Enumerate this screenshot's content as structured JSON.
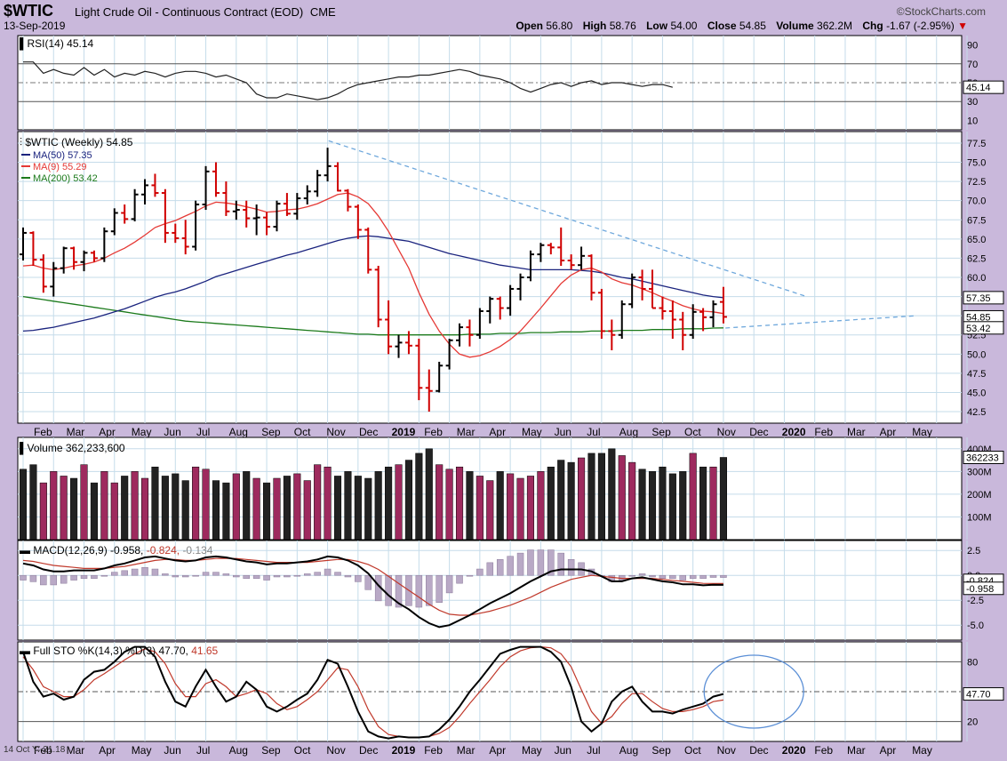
{
  "header": {
    "symbol": "$WTIC",
    "description": "Light Crude Oil - Continuous Contract (EOD)",
    "exchange": "CME",
    "date": "13-Sep-2019",
    "brand": "©StockCharts.com",
    "open_label": "Open",
    "open": "56.80",
    "high_label": "High",
    "high": "58.76",
    "low_label": "Low",
    "low": "54.00",
    "close_label": "Close",
    "close": "54.85",
    "volume_label": "Volume",
    "volume": "362.2M",
    "chg_label": "Chg",
    "chg": "-1.67 (-2.95%)"
  },
  "footer": "14 Oct Y:-21.18",
  "chart_data": [
    {
      "type": "line",
      "panel": "rsi",
      "title": "RSI(14) 45.14",
      "last_value_label": "45.14",
      "ylim": [
        0,
        100
      ],
      "ticks": [
        "90",
        "70",
        "50",
        "30",
        "10"
      ],
      "tick_values": [
        90,
        70,
        50,
        30,
        10
      ],
      "reference_lines": [
        70,
        50,
        30
      ],
      "values": [
        72,
        72,
        60,
        64,
        60,
        58,
        66,
        58,
        64,
        56,
        60,
        58,
        62,
        60,
        56,
        60,
        62,
        62,
        60,
        56,
        58,
        54,
        50,
        38,
        34,
        34,
        38,
        36,
        34,
        32,
        34,
        38,
        44,
        48,
        50,
        52,
        54,
        56,
        56,
        58,
        58,
        60,
        62,
        64,
        62,
        58,
        56,
        54,
        50,
        44,
        40,
        44,
        48,
        50,
        46,
        50,
        52,
        48,
        50,
        50,
        48,
        46,
        48,
        48,
        45.14
      ]
    },
    {
      "type": "bar",
      "panel": "price",
      "title": "$WTIC (Weekly) 54.85",
      "ylim": [
        41,
        79
      ],
      "ticks": [
        "77.5",
        "75.0",
        "72.5",
        "70.0",
        "67.5",
        "65.0",
        "62.5",
        "60.0",
        "57.5",
        "55.0",
        "52.5",
        "50.0",
        "47.5",
        "45.0",
        "42.5"
      ],
      "tick_values": [
        77.5,
        75,
        72.5,
        70,
        67.5,
        65,
        62.5,
        60,
        57.5,
        55,
        52.5,
        50,
        47.5,
        45,
        42.5
      ],
      "x_labels": [
        "Feb",
        "Mar",
        "Apr",
        "May",
        "Jun",
        "Jul",
        "Aug",
        "Sep",
        "Oct",
        "Nov",
        "Dec",
        "2019",
        "Feb",
        "Mar",
        "Apr",
        "May",
        "Jun",
        "Jul",
        "Aug",
        "Sep",
        "Oct",
        "Nov",
        "Dec",
        "2020",
        "Feb",
        "Mar",
        "Apr",
        "May"
      ],
      "legend": [
        {
          "name": "MA(50) 57.35",
          "color": "#1a237e"
        },
        {
          "name": "MA(9) 55.29",
          "color": "#e53935"
        },
        {
          "name": "MA(200) 53.42",
          "color": "#1b7a1b"
        }
      ],
      "axis_badges": [
        "57.35",
        "54.85",
        "53.42"
      ],
      "ohlc": [
        [
          63,
          66.5,
          62.2,
          65.8
        ],
        [
          65.8,
          66,
          61.5,
          62.3
        ],
        [
          62.3,
          63,
          58,
          58.8
        ],
        [
          58.8,
          62,
          57.5,
          61.2
        ],
        [
          61.2,
          64,
          60.5,
          63.8
        ],
        [
          63.8,
          64,
          61,
          62
        ],
        [
          62,
          63.5,
          60.8,
          63.2
        ],
        [
          63.2,
          63.5,
          62,
          62.5
        ],
        [
          62.5,
          66.5,
          62,
          66
        ],
        [
          66,
          69,
          65.5,
          68.4
        ],
        [
          68.4,
          69.5,
          67,
          67.6
        ],
        [
          67.6,
          71.5,
          67.3,
          70.8
        ],
        [
          70.8,
          72.8,
          69.5,
          72
        ],
        [
          72,
          73.5,
          70.5,
          71
        ],
        [
          71,
          71.5,
          64.5,
          65.8
        ],
        [
          65.8,
          67,
          64.5,
          65.1
        ],
        [
          65.1,
          67.5,
          63,
          64
        ],
        [
          64,
          70,
          63.5,
          69.5
        ],
        [
          69.5,
          74.5,
          68.8,
          73.8
        ],
        [
          73.8,
          75,
          70.5,
          71
        ],
        [
          71,
          72.5,
          68,
          68.6
        ],
        [
          68.6,
          70,
          67.5,
          68.8
        ],
        [
          68.8,
          70,
          66.5,
          67.7
        ],
        [
          67.7,
          69.5,
          65.5,
          67.8
        ],
        [
          67.8,
          68.5,
          65.5,
          66.6
        ],
        [
          66.6,
          70,
          66,
          69.6
        ],
        [
          69.6,
          71,
          68,
          68.3
        ],
        [
          68.3,
          71,
          67.5,
          70.3
        ],
        [
          70.3,
          72,
          69.5,
          71.2
        ],
        [
          71.2,
          74,
          70.5,
          73.3
        ],
        [
          73.3,
          76.9,
          72.5,
          74.5
        ],
        [
          74.5,
          75,
          71.2,
          71.3
        ],
        [
          71.3,
          71.5,
          68.6,
          69.2
        ],
        [
          69.2,
          69.5,
          65,
          66.2
        ],
        [
          66.2,
          66.5,
          60.5,
          61
        ],
        [
          61,
          61.5,
          53.5,
          54.5
        ],
        [
          54.5,
          57,
          50,
          51
        ],
        [
          51,
          52.5,
          49.5,
          51.5
        ],
        [
          51.5,
          53,
          50,
          51.1
        ],
        [
          51.1,
          52,
          44,
          45.6
        ],
        [
          45.6,
          48,
          42.5,
          45.2
        ],
        [
          45.2,
          49,
          45,
          48.5
        ],
        [
          48.5,
          52,
          48,
          51.8
        ],
        [
          51.8,
          54,
          51,
          53.5
        ],
        [
          53.5,
          54.5,
          51,
          52.5
        ],
        [
          52.5,
          56,
          52,
          55.6
        ],
        [
          55.6,
          57.5,
          54,
          57.2
        ],
        [
          57.2,
          57.5,
          54.5,
          56
        ],
        [
          56,
          59,
          55,
          58.5
        ],
        [
          58.5,
          60.5,
          57,
          60
        ],
        [
          60,
          63.5,
          59.5,
          63
        ],
        [
          63,
          64.5,
          62,
          64.2
        ],
        [
          64.2,
          64.5,
          63,
          63.9
        ],
        [
          63.9,
          66.5,
          61.5,
          62.2
        ],
        [
          62.2,
          63,
          61,
          61.6
        ],
        [
          61.6,
          64,
          61,
          62.8
        ],
        [
          62.8,
          63,
          57,
          58
        ],
        [
          58,
          58.5,
          52,
          53
        ],
        [
          53,
          54.5,
          50.5,
          52.5
        ],
        [
          52.5,
          57,
          52,
          56.5
        ],
        [
          56.5,
          60.5,
          56,
          60
        ],
        [
          60,
          61,
          57,
          58.5
        ],
        [
          58.5,
          61,
          56,
          56
        ],
        [
          56,
          57.5,
          54.5,
          55.6
        ],
        [
          55.6,
          57,
          52,
          54.5
        ],
        [
          54.5,
          55.5,
          50.5,
          52.5
        ],
        [
          52.5,
          56.5,
          52,
          55.5
        ],
        [
          55.5,
          56,
          53,
          54.8
        ],
        [
          54.8,
          57,
          53.5,
          56.5
        ],
        [
          56.8,
          58.76,
          54,
          54.85
        ]
      ],
      "ma9": [
        61.5,
        61.6,
        61.2,
        61,
        61.2,
        61.5,
        61.7,
        62,
        62.5,
        63.2,
        63.8,
        64.6,
        65.5,
        66.5,
        67,
        67.4,
        68,
        68.6,
        69.3,
        69.8,
        69.7,
        69.5,
        69.2,
        68.9,
        68.5,
        68.6,
        68.8,
        68.9,
        69.2,
        69.6,
        70.2,
        70.8,
        71,
        70.5,
        69.6,
        68,
        66,
        63.6,
        61.2,
        58,
        55.2,
        53,
        51.3,
        50,
        49.6,
        49.8,
        50.3,
        51,
        51.9,
        53,
        54.5,
        56,
        57.6,
        59.2,
        60.3,
        61,
        61.2,
        60.7,
        59.8,
        59.3,
        59,
        58.5,
        58,
        57.4,
        56.9,
        56.3,
        55.9,
        55.6,
        55.5,
        55.29
      ],
      "ma50": [
        53,
        53.1,
        53.3,
        53.5,
        53.8,
        54.1,
        54.4,
        54.7,
        55.1,
        55.5,
        55.9,
        56.4,
        56.9,
        57.4,
        57.8,
        58.1,
        58.5,
        59,
        59.5,
        60.1,
        60.5,
        60.9,
        61.3,
        61.7,
        62.1,
        62.5,
        62.9,
        63.2,
        63.6,
        64,
        64.4,
        64.8,
        65.1,
        65.3,
        65.4,
        65.3,
        65.1,
        64.9,
        64.7,
        64.3,
        63.9,
        63.5,
        63.1,
        62.8,
        62.5,
        62.2,
        61.9,
        61.6,
        61.4,
        61.2,
        61,
        61,
        61,
        61,
        61,
        60.9,
        60.8,
        60.6,
        60.3,
        60,
        59.8,
        59.5,
        59.2,
        58.9,
        58.6,
        58.3,
        58,
        57.7,
        57.5,
        57.35
      ],
      "ma200": [
        57.5,
        57.3,
        57.1,
        56.9,
        56.7,
        56.5,
        56.3,
        56.1,
        55.9,
        55.7,
        55.5,
        55.3,
        55.1,
        54.9,
        54.7,
        54.5,
        54.3,
        54.2,
        54.1,
        54,
        53.9,
        53.8,
        53.7,
        53.6,
        53.5,
        53.4,
        53.3,
        53.2,
        53.1,
        53,
        52.9,
        52.8,
        52.7,
        52.6,
        52.6,
        52.5,
        52.5,
        52.5,
        52.5,
        52.5,
        52.5,
        52.5,
        52.5,
        52.5,
        52.6,
        52.6,
        52.6,
        52.7,
        52.7,
        52.7,
        52.8,
        52.8,
        52.8,
        52.9,
        52.9,
        52.9,
        53,
        53,
        53,
        53.1,
        53.1,
        53.1,
        53.2,
        53.2,
        53.2,
        53.3,
        53.3,
        53.3,
        53.4,
        53.42
      ],
      "trendline_upper": [
        [
          30.1,
          77.8
        ],
        [
          77.2,
          57.5
        ]
      ],
      "trendline_lower": [
        [
          69.2,
          53.4
        ],
        [
          88,
          55
        ]
      ]
    },
    {
      "type": "bar",
      "panel": "volume",
      "title": "Volume 362,233,600",
      "last_value_label": "362233",
      "ylim": [
        0,
        450
      ],
      "ticks": [
        "400M",
        "300M",
        "200M",
        "100M"
      ],
      "tick_values": [
        400,
        300,
        200,
        100
      ],
      "values": [
        310,
        330,
        250,
        300,
        280,
        270,
        330,
        250,
        300,
        250,
        280,
        300,
        270,
        320,
        280,
        290,
        260,
        320,
        310,
        260,
        250,
        290,
        300,
        270,
        250,
        270,
        280,
        290,
        260,
        330,
        320,
        280,
        300,
        280,
        270,
        300,
        320,
        330,
        350,
        380,
        400,
        330,
        310,
        320,
        300,
        280,
        260,
        300,
        290,
        270,
        280,
        300,
        320,
        350,
        340,
        360,
        380,
        380,
        400,
        370,
        340,
        310,
        300,
        320,
        290,
        300,
        380,
        320,
        320,
        362
      ],
      "up": [
        false,
        false,
        true,
        true,
        true,
        false,
        true,
        false,
        true,
        true,
        false,
        true,
        true,
        false,
        false,
        false,
        false,
        true,
        true,
        false,
        false,
        true,
        false,
        true,
        false,
        true,
        false,
        true,
        true,
        true,
        true,
        false,
        false,
        false,
        false,
        false,
        false,
        true,
        false,
        false,
        false,
        true,
        true,
        true,
        false,
        true,
        true,
        false,
        true,
        true,
        true,
        true,
        false,
        false,
        false,
        true,
        false,
        false,
        false,
        true,
        true,
        false,
        false,
        false,
        false,
        false,
        true,
        false,
        true,
        false
      ]
    },
    {
      "type": "line",
      "panel": "macd",
      "title": "MACD(12,26,9)",
      "values_label": [
        "-0.958",
        "-0.824",
        "-0.134"
      ],
      "axis_badges": [
        "-0.824",
        "-0.958"
      ],
      "ylim": [
        -6.5,
        3.5
      ],
      "ticks": [
        "2.5",
        "0.0",
        "-2.5",
        "-5.0"
      ],
      "tick_values": [
        2.5,
        0,
        -2.5,
        -5
      ],
      "macd": [
        1.2,
        1.0,
        0.6,
        0.4,
        0.4,
        0.5,
        0.5,
        0.5,
        0.7,
        1.0,
        1.2,
        1.5,
        1.8,
        1.9,
        1.7,
        1.5,
        1.4,
        1.5,
        1.8,
        1.9,
        1.8,
        1.6,
        1.4,
        1.3,
        1.1,
        1.2,
        1.2,
        1.3,
        1.4,
        1.6,
        1.9,
        1.8,
        1.5,
        1.0,
        0.2,
        -1.0,
        -2.0,
        -2.8,
        -3.4,
        -4.2,
        -4.8,
        -5.2,
        -5.0,
        -4.5,
        -4.0,
        -3.4,
        -2.8,
        -2.3,
        -1.8,
        -1.2,
        -0.6,
        -0.1,
        0.4,
        0.6,
        0.6,
        0.6,
        0.4,
        -0.1,
        -0.6,
        -0.6,
        -0.3,
        -0.2,
        -0.4,
        -0.6,
        -0.7,
        -0.9,
        -0.9,
        -1.0,
        -0.95,
        -0.958
      ],
      "signal": [
        1.5,
        1.4,
        1.2,
        1.0,
        0.9,
        0.8,
        0.7,
        0.7,
        0.7,
        0.8,
        0.9,
        1.1,
        1.3,
        1.5,
        1.6,
        1.6,
        1.5,
        1.5,
        1.6,
        1.7,
        1.7,
        1.7,
        1.6,
        1.5,
        1.4,
        1.3,
        1.3,
        1.3,
        1.3,
        1.4,
        1.5,
        1.6,
        1.6,
        1.4,
        1.1,
        0.6,
        -0.1,
        -0.8,
        -1.5,
        -2.2,
        -2.9,
        -3.5,
        -3.9,
        -4.0,
        -4.0,
        -3.8,
        -3.6,
        -3.3,
        -3.0,
        -2.6,
        -2.2,
        -1.7,
        -1.2,
        -0.8,
        -0.4,
        -0.2,
        0.0,
        -0.1,
        -0.2,
        -0.3,
        -0.3,
        -0.3,
        -0.3,
        -0.4,
        -0.5,
        -0.6,
        -0.7,
        -0.8,
        -0.82,
        -0.824
      ]
    },
    {
      "type": "line",
      "panel": "sto",
      "title": "Full STO %K(14,3) %D(3) 47.70, 41.65",
      "title_k": "Full STO %K(14,3) %D(3) 47.70,",
      "title_d": "41.65",
      "last_value_label": "47.70",
      "ylim": [
        0,
        100
      ],
      "ticks": [
        "80",
        "50",
        "20"
      ],
      "tick_values": [
        80,
        50,
        20
      ],
      "reference_lines": [
        80,
        50,
        20
      ],
      "k": [
        90,
        60,
        45,
        48,
        42,
        45,
        62,
        70,
        72,
        80,
        90,
        95,
        95,
        85,
        60,
        40,
        35,
        55,
        72,
        55,
        40,
        45,
        60,
        52,
        35,
        30,
        35,
        42,
        48,
        62,
        82,
        78,
        55,
        30,
        10,
        5,
        3,
        5,
        4,
        4,
        5,
        12,
        22,
        35,
        50,
        62,
        75,
        88,
        92,
        95,
        95,
        95,
        90,
        80,
        55,
        20,
        10,
        18,
        40,
        50,
        55,
        40,
        30,
        30,
        28,
        32,
        35,
        38,
        45,
        47.7
      ],
      "d": [
        85,
        72,
        55,
        50,
        45,
        45,
        52,
        62,
        68,
        75,
        82,
        88,
        93,
        90,
        78,
        58,
        45,
        45,
        58,
        62,
        55,
        45,
        48,
        52,
        48,
        38,
        32,
        35,
        42,
        50,
        62,
        74,
        72,
        55,
        32,
        15,
        7,
        5,
        4,
        4,
        5,
        8,
        14,
        25,
        38,
        50,
        62,
        75,
        85,
        91,
        94,
        95,
        94,
        88,
        75,
        52,
        30,
        18,
        25,
        38,
        48,
        48,
        40,
        33,
        30,
        30,
        32,
        35,
        40,
        41.65
      ],
      "annotation": "ellipse"
    }
  ]
}
